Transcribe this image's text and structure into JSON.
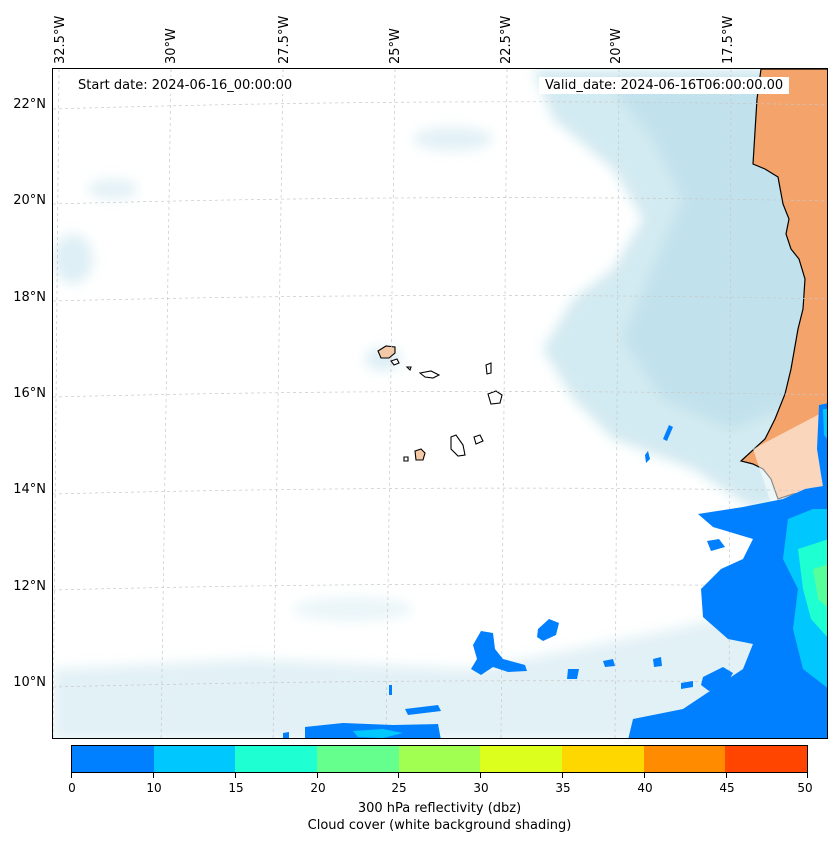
{
  "map": {
    "start_date": "Start date: 2024-06-16_00:00:00",
    "valid_date": "Valid_date: 2024-06-16T06:00:00.00",
    "lon_labels": [
      "32.5°W",
      "30°W",
      "27.5°W",
      "25°W",
      "22.5°W",
      "20°W",
      "17.5°W"
    ],
    "lat_labels": [
      "22°N",
      "20°N",
      "18°N",
      "16°N",
      "14°N",
      "12°N",
      "10°N"
    ],
    "extent": {
      "lon_west": -33.0,
      "lon_east": -16.0,
      "lat_south": 8.8,
      "lat_north": 22.8
    },
    "colors": {
      "land": "#f4a46a",
      "cloud": "#add8e6",
      "coast": "#000000"
    }
  },
  "colorbar": {
    "ticks": [
      "0",
      "10",
      "15",
      "20",
      "25",
      "30",
      "35",
      "40",
      "45",
      "50"
    ],
    "colors": [
      "#0080ff",
      "#00c8ff",
      "#1effd2",
      "#64ff8c",
      "#a0ff50",
      "#dcff1e",
      "#ffd700",
      "#ff8c00",
      "#ff4500"
    ],
    "label": "300 hPa reflectivity (dbz)",
    "sublabel": "Cloud cover (white background shading)"
  }
}
